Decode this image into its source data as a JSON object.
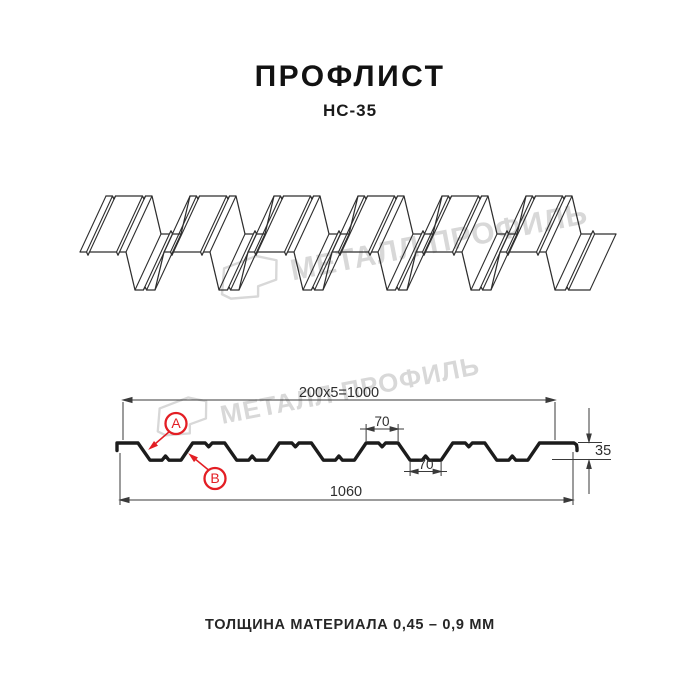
{
  "header": {
    "title": "ПРОФЛИСТ",
    "subtitle": "НС-35"
  },
  "watermark": {
    "text": "МЕТАЛЛ ПРОФИЛЬ",
    "color": "#d8d8d8"
  },
  "drawing": {
    "dimensions": {
      "module_width": "200x5=1000",
      "crest_top_width": "70",
      "trough_bottom_width": "70",
      "profile_height": "35",
      "overall_width": "1060"
    },
    "side_labels": {
      "a": "A",
      "b": "B"
    },
    "colors": {
      "section_line": "#1c1c1c",
      "sheet_line": "#2e2e2e",
      "dimension": "#3a3a3a",
      "accent_red": "#e31e24",
      "watermark": "#d8d8d8"
    }
  },
  "footer": {
    "thickness_note": "ТОЛЩИНА МАТЕРИАЛА 0,45 – 0,9 ММ"
  }
}
